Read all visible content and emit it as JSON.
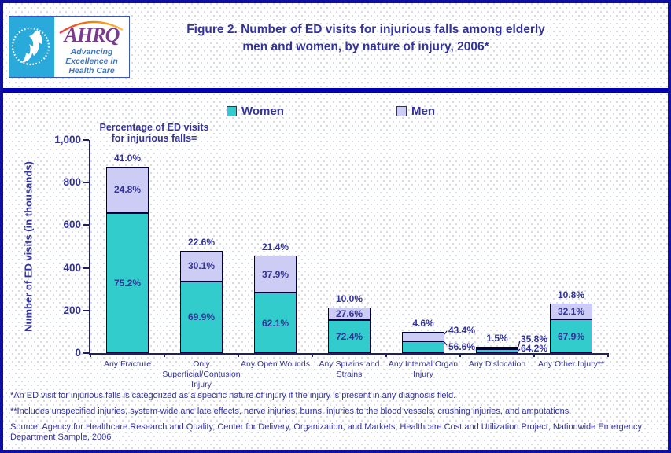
{
  "header": {
    "title_line1": "Figure 2. Number of ED visits for injurious falls among elderly",
    "title_line2": "men and women, by nature of injury, 2006*",
    "logo": {
      "wordmark": "AHRQ",
      "tagline_lines": [
        "Advancing",
        "Excellence in",
        "Health Care"
      ]
    }
  },
  "legend": {
    "items": [
      {
        "label": "Women",
        "color": "#33CCCC"
      },
      {
        "label": "Men",
        "color": "#CCCCF5"
      }
    ]
  },
  "annotation": {
    "line1": "Percentage of ED visits",
    "line2": "for injurious falls="
  },
  "chart_data": {
    "type": "bar",
    "stacked": true,
    "title": "Figure 2. Number of ED visits for injurious falls among elderly men and women, by nature of injury, 2006*",
    "ylabel": "Number of ED visits (in thousands)",
    "xlabel": "",
    "ylim": [
      0,
      1000
    ],
    "yticks": [
      0,
      200,
      400,
      600,
      800,
      1000
    ],
    "ytick_labels": [
      "0",
      "200",
      "400",
      "600",
      "800",
      "1,000"
    ],
    "legend_position": "top",
    "grid": false,
    "categories": [
      "Any Fracture",
      "Only Superficial/Contusion Injury",
      "Any Open Wounds",
      "Any Sprains and Strains",
      "Any Internal Organ Injury",
      "Any Dislocation",
      "Any Other Injury**"
    ],
    "series": [
      {
        "name": "Women",
        "color": "#33CCCC",
        "values": [
          657,
          336,
          283,
          154,
          55,
          20,
          158
        ],
        "segment_pct_labels": [
          "75.2%",
          "69.9%",
          "62.1%",
          "72.4%",
          "56.6%",
          "64.2%",
          "67.9%"
        ]
      },
      {
        "name": "Men",
        "color": "#CCCCF5",
        "values": [
          218,
          145,
          173,
          59,
          43,
          11,
          75
        ],
        "segment_pct_labels": [
          "24.8%",
          "30.1%",
          "37.9%",
          "27.6%",
          "43.4%",
          "35.8%",
          "32.1%"
        ]
      }
    ],
    "total_pct_labels": [
      "41.0%",
      "22.6%",
      "21.4%",
      "10.0%",
      "4.6%",
      "1.5%",
      "10.8%"
    ],
    "annotation": "Percentage of ED visits for injurious falls="
  },
  "footnotes": {
    "note1": "*An ED visit for injurious falls is categorized as a specific nature of injury if the injury is present in any diagnosis field.",
    "note2": "**Includes unspecified injuries, system-wide and late effects, nerve injuries, burns, injuries to the blood vessels, crushing injuries, and amputations.",
    "source": "Source: Agency for Healthcare Research and Quality, Center for Delivery, Organization, and Markets, Healthcare Cost and Utilization Project, Nationwide Emergency Department Sample, 2006"
  },
  "colors": {
    "text_navy": "#333399",
    "women_teal": "#33CCCC",
    "men_lavender": "#CCCCF5",
    "rule_blue": "#0000B4",
    "border_blue": "#0F0FA0",
    "logo_cyan": "#2AA9DB",
    "logo_purple": "#7A3B8F",
    "logo_tagline_blue": "#4577B8"
  }
}
